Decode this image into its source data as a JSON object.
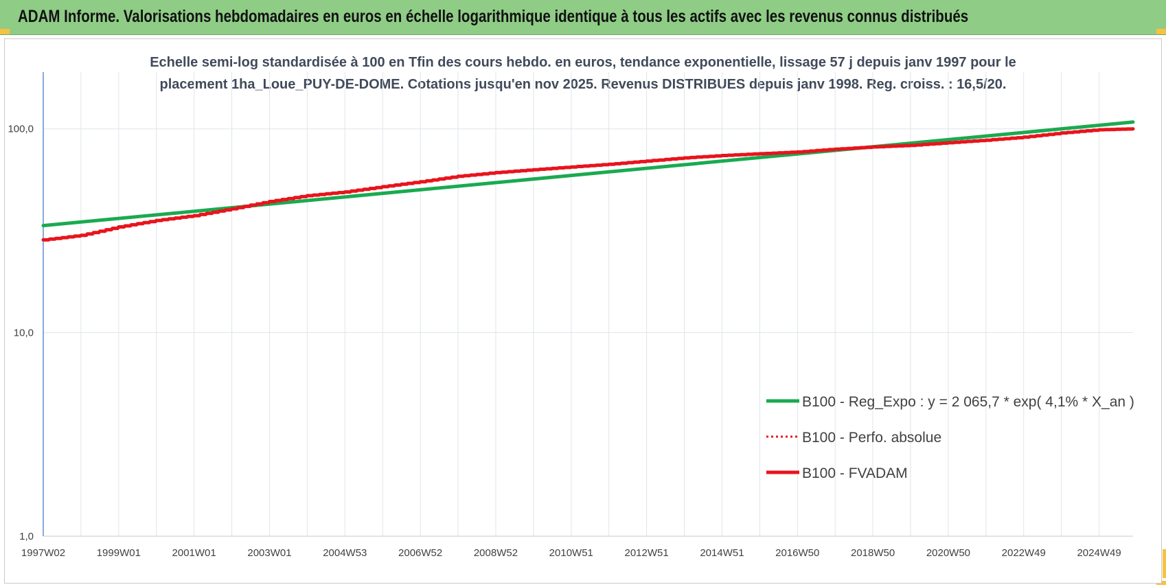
{
  "header": {
    "title": "ADAM Informe. Valorisations hebdomadaires en euros en échelle logarithmique identique à tous les actifs avec les revenus connus distribués"
  },
  "colors": {
    "header_bg": "#8fcc86",
    "trend": "#1aaa50",
    "fvadam": "#e8141c",
    "perfo": "#e8141c",
    "grid": "#dfe5ea",
    "axis": "#5b8fd0",
    "corner": "#f5c242"
  },
  "chart_data": {
    "type": "line",
    "subtitle_lines": [
      "Echelle semi-log standardisée à 100 en Tfin des cours hebdo. en euros, tendance exponentielle, lissage 57 j depuis janv 1997 pour le",
      "placement 1ha_Loue_PUY-DE-DOME. Cotations jusqu'en nov 2025.  Revenus DISTRIBUES depuis janv 1998.  Reg. croiss. : 16,5/20."
    ],
    "y_scale": "log",
    "ylim": [
      1,
      190
    ],
    "y_ticks": [
      {
        "value": 1,
        "label": "1,0"
      },
      {
        "value": 10,
        "label": "10,0"
      },
      {
        "value": 100,
        "label": "100,0"
      }
    ],
    "xlim": [
      1997.0,
      2025.9
    ],
    "x_ticks": [
      {
        "value": 1997.0,
        "label": "1997W02"
      },
      {
        "value": 1999.0,
        "label": "1999W01"
      },
      {
        "value": 2001.0,
        "label": "2001W01"
      },
      {
        "value": 2003.0,
        "label": "2003W01"
      },
      {
        "value": 2005.0,
        "label": "2004W53"
      },
      {
        "value": 2007.0,
        "label": "2006W52"
      },
      {
        "value": 2009.0,
        "label": "2008W52"
      },
      {
        "value": 2011.0,
        "label": "2010W51"
      },
      {
        "value": 2013.0,
        "label": "2012W51"
      },
      {
        "value": 2015.0,
        "label": "2014W51"
      },
      {
        "value": 2017.0,
        "label": "2016W50"
      },
      {
        "value": 2019.0,
        "label": "2018W50"
      },
      {
        "value": 2021.0,
        "label": "2020W50"
      },
      {
        "value": 2023.0,
        "label": "2022W49"
      },
      {
        "value": 2025.0,
        "label": "2024W49"
      }
    ],
    "grid": true,
    "legend_position": "bottom-right",
    "series": [
      {
        "name": "B100 - Reg_Expo : y = 2 065,7 * exp( 4,1% *  X_an )",
        "style": "solid",
        "x": [
          1997.0,
          2025.9
        ],
        "values": [
          33.5,
          108
        ]
      },
      {
        "name": "B100 - Perfo. absolue",
        "style": "dotted",
        "x": [],
        "values": []
      },
      {
        "name": "B100 - FVADAM",
        "style": "solid",
        "x": [
          1997.0,
          1998.0,
          1999.0,
          2000.0,
          2001.0,
          2002.0,
          2003.0,
          2004.0,
          2005.0,
          2006.0,
          2007.0,
          2008.0,
          2009.0,
          2010.0,
          2011.0,
          2012.0,
          2013.0,
          2014.0,
          2015.0,
          2016.0,
          2017.0,
          2018.0,
          2019.0,
          2020.0,
          2021.0,
          2022.0,
          2023.0,
          2024.0,
          2025.0,
          2025.9
        ],
        "values": [
          28.5,
          30.0,
          33.0,
          35.5,
          37.5,
          40.5,
          44.0,
          47.0,
          49.0,
          52.0,
          55.0,
          58.5,
          61.0,
          63.0,
          65.0,
          67.0,
          69.5,
          72.0,
          74.0,
          75.5,
          77.0,
          79.5,
          81.5,
          83.0,
          85.5,
          88.0,
          91.0,
          95.5,
          99.0,
          100.0
        ]
      }
    ]
  }
}
